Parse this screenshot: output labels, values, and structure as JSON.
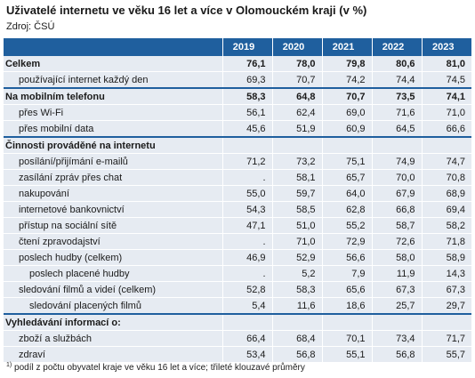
{
  "title": "Uživatelé internetu ve věku 16 let a více v Olomouckém kraji (v %)",
  "source": "Zdroj: ČSÚ",
  "years": [
    "2019",
    "2020",
    "2021",
    "2022",
    "2023"
  ],
  "rows": [
    {
      "label": "Celkem",
      "values": [
        "76,1",
        "78,0",
        "79,8",
        "80,6",
        "81,0"
      ]
    },
    {
      "label": "používající internet každý den",
      "values": [
        "69,3",
        "70,7",
        "74,2",
        "74,4",
        "74,5"
      ]
    },
    {
      "label": "Na mobilním telefonu",
      "values": [
        "58,3",
        "64,8",
        "70,7",
        "73,5",
        "74,1"
      ]
    },
    {
      "label": "přes Wi-Fi",
      "values": [
        "56,1",
        "62,4",
        "69,0",
        "71,6",
        "71,0"
      ]
    },
    {
      "label": "přes mobilní data",
      "values": [
        "45,6",
        "51,9",
        "60,9",
        "64,5",
        "66,6"
      ]
    },
    {
      "label": "Činnosti prováděné na internetu",
      "values": [
        "",
        "",
        "",
        "",
        ""
      ]
    },
    {
      "label": "posílání/přijímání e-mailů",
      "values": [
        "71,2",
        "73,2",
        "75,1",
        "74,9",
        "74,7"
      ]
    },
    {
      "label": "zasílání zpráv přes chat",
      "values": [
        ".",
        "58,1",
        "65,7",
        "70,0",
        "70,8"
      ]
    },
    {
      "label": "nakupování",
      "values": [
        "55,0",
        "59,7",
        "64,0",
        "67,9",
        "68,9"
      ]
    },
    {
      "label": "internetové bankovnictví",
      "values": [
        "54,3",
        "58,5",
        "62,8",
        "66,8",
        "69,4"
      ]
    },
    {
      "label": "přístup na sociální sítě",
      "values": [
        "47,1",
        "51,0",
        "55,2",
        "58,7",
        "58,2"
      ]
    },
    {
      "label": "čtení zpravodajství",
      "values": [
        ".",
        "71,0",
        "72,9",
        "72,6",
        "71,8"
      ]
    },
    {
      "label": "poslech hudby (celkem)",
      "values": [
        "46,9",
        "52,9",
        "56,6",
        "58,0",
        "58,9"
      ]
    },
    {
      "label": "poslech placené hudby",
      "values": [
        ".",
        "5,2",
        "7,9",
        "11,9",
        "14,3"
      ]
    },
    {
      "label": "sledování filmů a videí (celkem)",
      "values": [
        "52,8",
        "58,3",
        "65,6",
        "67,3",
        "67,3"
      ]
    },
    {
      "label": "sledování placených filmů",
      "values": [
        "5,4",
        "11,6",
        "18,6",
        "25,7",
        "29,7"
      ]
    },
    {
      "label": "Vyhledávání informací o:",
      "values": [
        "",
        "",
        "",
        "",
        ""
      ]
    },
    {
      "label": "zboží a službách",
      "values": [
        "66,4",
        "68,4",
        "70,1",
        "73,4",
        "71,7"
      ]
    },
    {
      "label": "zdraví",
      "values": [
        "53,4",
        "56,8",
        "55,1",
        "56,8",
        "55,7"
      ]
    }
  ],
  "footnote_marker": "1)",
  "footnote": "podíl z počtu obyvatel kraje ve věku 16 let a více; třileté klouzavé průměry",
  "colors": {
    "header": "#1f5f9e",
    "stripe": "#e6ebf2"
  }
}
